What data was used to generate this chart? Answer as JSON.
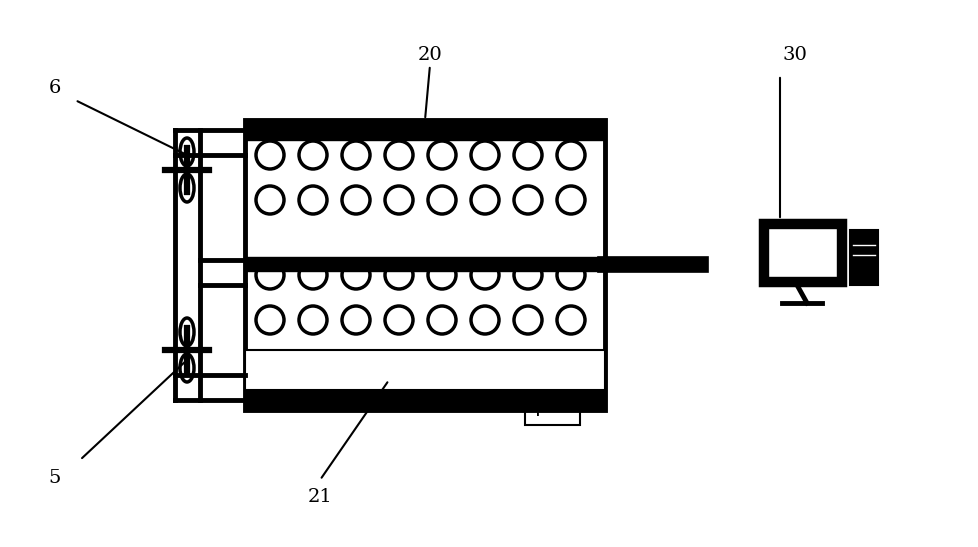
{
  "bg_color": "#ffffff",
  "line_color": "#000000",
  "label_6": "6",
  "label_5": "5",
  "label_20": "20",
  "label_21": "21",
  "label_30": "30",
  "figsize": [
    9.79,
    5.47
  ],
  "dpi": 100
}
